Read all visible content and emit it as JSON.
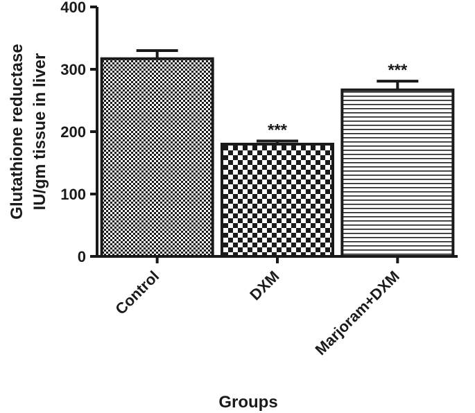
{
  "chart_data": {
    "type": "bar",
    "categories": [
      "Control",
      "DXM",
      "Marjoram+DXM"
    ],
    "values": [
      317,
      180,
      267
    ],
    "errors": [
      13,
      5,
      14
    ],
    "significance": [
      "",
      "***",
      "***"
    ],
    "patterns": [
      "fine-checker",
      "coarse-checker",
      "horizontal-lines"
    ],
    "xlabel": "Groups",
    "ylabel": [
      "Glutathione reductase",
      "IU/gm tissue  in liver"
    ],
    "ylim": [
      0,
      400
    ],
    "yticks": [
      0,
      100,
      200,
      300,
      400
    ],
    "grid": false,
    "colors": {
      "ink": "#1a1a1a",
      "background": "#ffffff"
    }
  }
}
